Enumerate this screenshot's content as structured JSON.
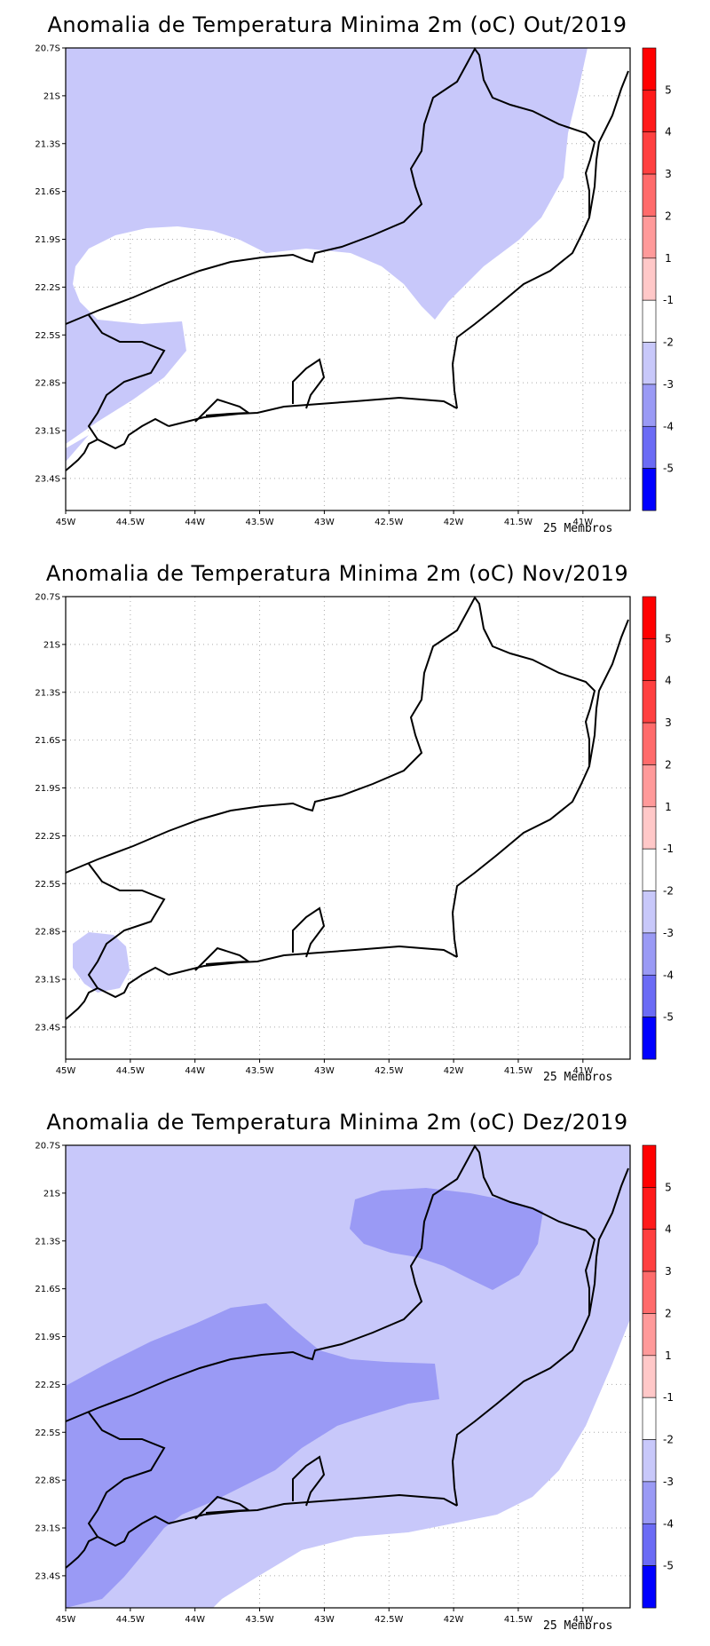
{
  "colorbar": {
    "levels": [
      {
        "label": "5",
        "value": 5,
        "color": "#ff1a1a"
      },
      {
        "label": "4",
        "value": 4,
        "color": "#ff4040"
      },
      {
        "label": "3",
        "value": 3,
        "color": "#ff6b6b"
      },
      {
        "label": "2",
        "value": 2,
        "color": "#ff9a9a"
      },
      {
        "label": "1",
        "value": 1,
        "color": "#ffc8c8"
      },
      {
        "label": "-1",
        "value": -1,
        "color": "#ffffff"
      },
      {
        "label": "-2",
        "value": -2,
        "color": "#c8c8fa"
      },
      {
        "label": "-3",
        "value": -3,
        "color": "#9a9af5"
      },
      {
        "label": "-4",
        "value": -4,
        "color": "#6b6bf5"
      },
      {
        "label": "-5",
        "value": -5,
        "color": "#4040f5"
      }
    ],
    "top_color": "#ff0000",
    "bottom_color": "#0000ff"
  },
  "axes": {
    "lat_labels": [
      "20.7S",
      "21S",
      "21.3S",
      "21.6S",
      "21.9S",
      "22.2S",
      "22.5S",
      "22.8S",
      "23.1S",
      "23.4S"
    ],
    "lon_labels": [
      "45W",
      "44.5W",
      "44W",
      "43.5W",
      "43W",
      "42.5W",
      "42W",
      "41.5W",
      "41W"
    ],
    "lat_range": [
      -23.5,
      -20.7
    ],
    "lon_range": [
      -45,
      -40.75
    ]
  },
  "colors": {
    "class_m1_m2": "#c8c8fa",
    "class_m2_m3": "#9a9af5",
    "coast": "#000000",
    "grid": "#aaaaaa"
  },
  "panels": [
    {
      "title": "Anomalia de Temperatura Minima 2m (oC) Out/2019",
      "footer": "25 Membros"
    },
    {
      "title": "Anomalia de Temperatura Minima 2m (oC) Nov/2019",
      "footer": "25 Membros"
    },
    {
      "title": "Anomalia de Temperatura Minima 2m (oC) Dez/2019",
      "footer": "25 Membros"
    }
  ]
}
